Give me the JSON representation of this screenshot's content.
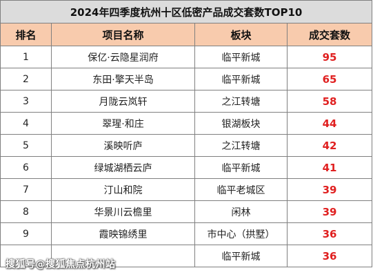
{
  "title": "2024年四季度杭州十区低密产品成交套数TOP10",
  "headers": [
    "排名",
    "项目名称",
    "板块",
    "成交套数"
  ],
  "rows": [
    {
      "rank": "1",
      "name": "保亿·云隐星润府",
      "area": "临平新城",
      "count": "95"
    },
    {
      "rank": "2",
      "name": "东田·擎天半岛",
      "area": "临平新城",
      "count": "65"
    },
    {
      "rank": "3",
      "name": "月陇云岚轩",
      "area": "之江转塘",
      "count": "58"
    },
    {
      "rank": "4",
      "name": "翠瑆·和庄",
      "area": "银湖板块",
      "count": "44"
    },
    {
      "rank": "5",
      "name": "溪映听庐",
      "area": "之江转塘",
      "count": "42"
    },
    {
      "rank": "6",
      "name": "绿城湖栖云庐",
      "area": "临平新城",
      "count": "41"
    },
    {
      "rank": "7",
      "name": "汀山和院",
      "area": "临平老城区",
      "count": "39"
    },
    {
      "rank": "8",
      "name": "华景川云檐里",
      "area": "闲林",
      "count": "39"
    },
    {
      "rank": "9",
      "name": "霞映锦绣里",
      "area": "市中心（拱墅）",
      "count": "36"
    },
    {
      "rank": "",
      "name": "",
      "area": "临平新城",
      "count": "36"
    }
  ],
  "watermark": "搜狐号@搜狐焦点杭州站",
  "colors": {
    "header_bg": "#f8cbad",
    "title_bg": "#dcdcdc",
    "value": "#e02020",
    "border": "#7f7f7f"
  }
}
